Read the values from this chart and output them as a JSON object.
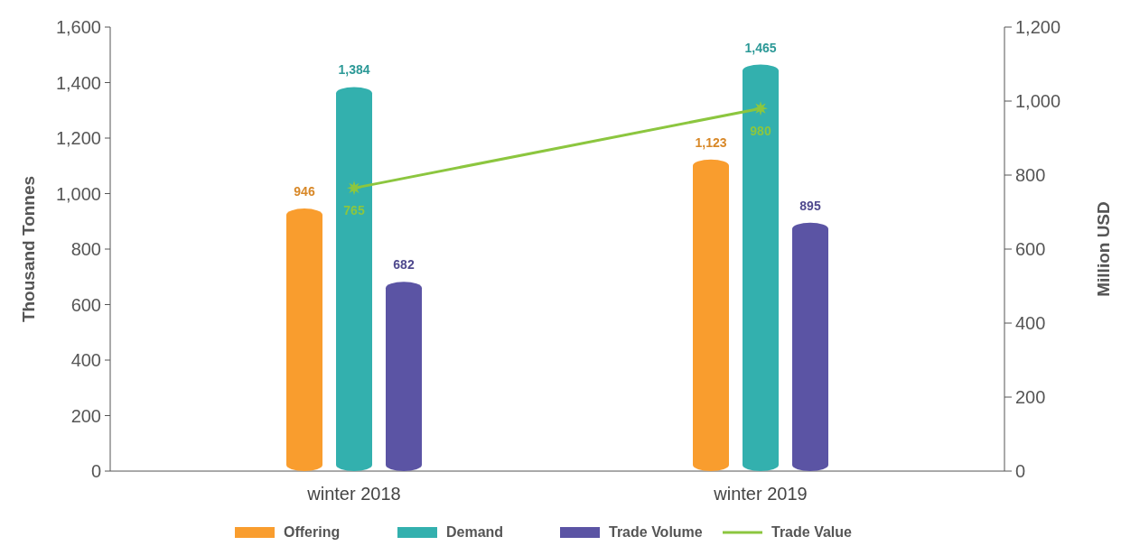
{
  "chart_data": {
    "type": "bar",
    "ylabel": "Thousand Tonnes",
    "y2label": "Million USD",
    "categories": [
      "winter 2018",
      "winter 2019"
    ],
    "series": [
      {
        "name": "Offering",
        "color": "#f99d2e",
        "values": [
          946,
          1123
        ],
        "value_labels": [
          "946",
          "1,123"
        ]
      },
      {
        "name": "Demand",
        "color": "#33b0ae",
        "values": [
          1384,
          1465
        ],
        "value_labels": [
          "1,384",
          "1,465"
        ]
      },
      {
        "name": "Trade Volume",
        "color": "#5b54a4",
        "values": [
          682,
          895
        ],
        "value_labels": [
          "682",
          "895"
        ]
      },
      {
        "name": "Trade Value",
        "type": "line",
        "axis": "y2",
        "color": "#8cc63f",
        "marker": "star",
        "values": [
          765,
          980
        ],
        "value_labels": [
          "765",
          "980"
        ]
      }
    ],
    "ylim": [
      0,
      1600
    ],
    "yticks": [
      0,
      200,
      400,
      600,
      800,
      {
        "value": 1000,
        "label": "1,000"
      },
      {
        "value": 1200,
        "label": "1,200"
      },
      {
        "value": 1400,
        "label": "1,400"
      },
      {
        "value": 1600,
        "label": "1,600"
      }
    ],
    "y2lim": [
      0,
      1200
    ],
    "y2ticks": [
      0,
      200,
      400,
      600,
      800,
      {
        "value": 1000,
        "label": "1,000"
      },
      {
        "value": 1200,
        "label": "1,200"
      }
    ],
    "grid": false,
    "legend": "bottom"
  }
}
